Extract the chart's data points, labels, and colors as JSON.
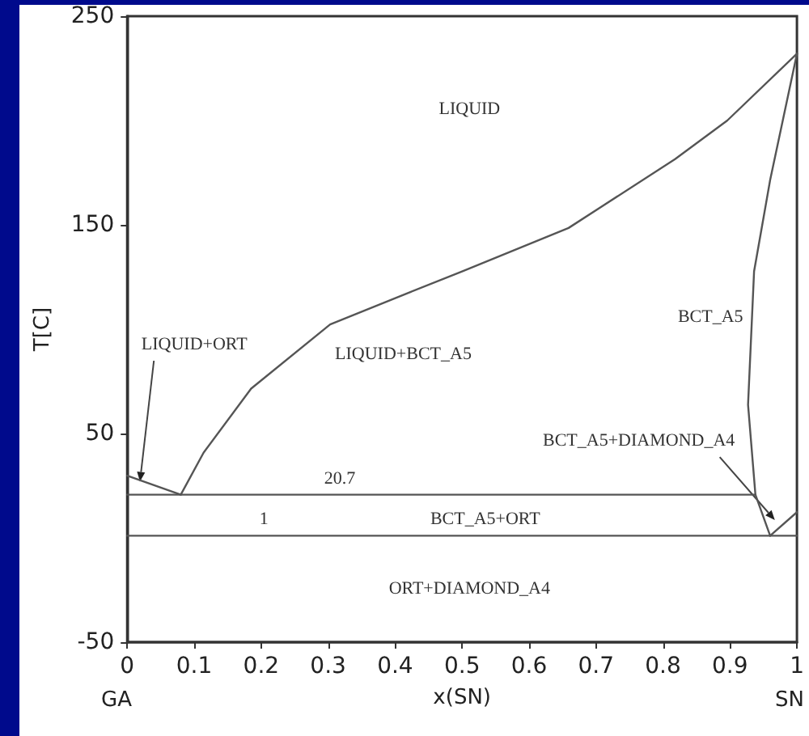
{
  "chart_data": {
    "type": "line",
    "xlabel": "x(SN)",
    "ylabel": "T[C]",
    "xlim": [
      0,
      1
    ],
    "xticks": [
      0,
      0.1,
      0.2,
      0.3,
      0.4,
      0.5,
      0.6,
      0.7,
      0.8,
      0.9,
      1
    ],
    "ylim": [
      -50,
      250
    ],
    "yticks": [
      -50,
      50,
      150,
      250
    ],
    "grid": false,
    "marker": "none",
    "line_style": "solid",
    "series": [
      {
        "color": "#555555",
        "x": [
          0.08,
          0.114,
          0.185,
          0.303,
          0.422,
          0.5,
          0.659,
          0.818,
          0.896,
          1
        ],
        "values": [
          20.7,
          40.8,
          71.5,
          102.3,
          117.7,
          127.7,
          148.5,
          181.5,
          200,
          232
        ]
      },
      {
        "color": "#555555",
        "x": [
          1,
          0.96,
          0.936,
          0.927,
          0.938,
          0.96
        ],
        "values": [
          232,
          171.5,
          127.7,
          63.8,
          20.7,
          1
        ]
      },
      {
        "color": "#555555",
        "x": [
          0.96,
          1
        ],
        "values": [
          1,
          12.3
        ]
      },
      {
        "color": "#555555",
        "x": [
          0,
          0.08
        ],
        "values": [
          29.8,
          20.7
        ]
      },
      {
        "color": "#555555",
        "x": [
          0,
          0.938
        ],
        "values": [
          20.7,
          20.7
        ]
      },
      {
        "color": "#555555",
        "x": [
          0,
          1
        ],
        "values": [
          1,
          1
        ]
      }
    ],
    "annotations": [
      "LIQUID",
      {
        "text": "LIQUID+ORT",
        "x": 0.019,
        "y": 26.9
      },
      "LIQUID+BCT_A5",
      "BCT_A5",
      {
        "text": "BCT_A5+DIAMOND_A4",
        "x": 0.967,
        "y": 8.5
      },
      "20.7",
      "1",
      "BCT_A5+ORT",
      "ORT+DIAMOND_A4",
      "GA",
      "SN"
    ]
  }
}
